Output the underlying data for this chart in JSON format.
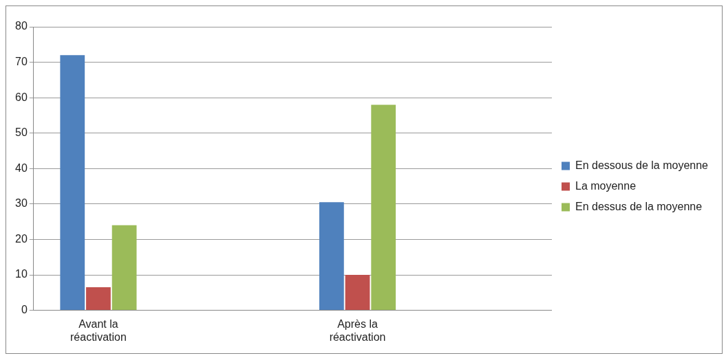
{
  "chart_data": {
    "type": "bar",
    "categories": [
      "Avant la réactivation",
      null,
      "Après la réactivation",
      null
    ],
    "series": [
      {
        "name": "En dessous de la moyenne",
        "color": "#4f81bd",
        "values": [
          72,
          null,
          30.5,
          null
        ]
      },
      {
        "name": "La moyenne",
        "color": "#c0504d",
        "values": [
          6.5,
          null,
          10,
          null
        ]
      },
      {
        "name": "En dessus de la moyenne",
        "color": "#9bbb59",
        "values": [
          24,
          null,
          58,
          null
        ]
      }
    ],
    "ylim": [
      0,
      80
    ],
    "yticks": [
      0,
      10,
      20,
      30,
      40,
      50,
      60,
      70,
      80
    ],
    "grid": "y",
    "legend": "right"
  }
}
